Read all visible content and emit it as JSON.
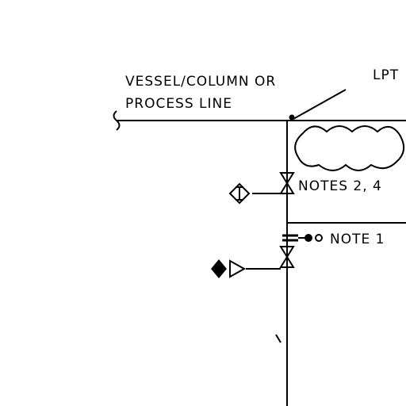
{
  "drawing": {
    "process_label_line1": "VESSEL/COLUMN OR",
    "process_label_line2": "PROCESS LINE",
    "lpt_label": "LPT",
    "notes_upper": "NOTES 2, 4",
    "note_lower": "NOTE 1"
  }
}
